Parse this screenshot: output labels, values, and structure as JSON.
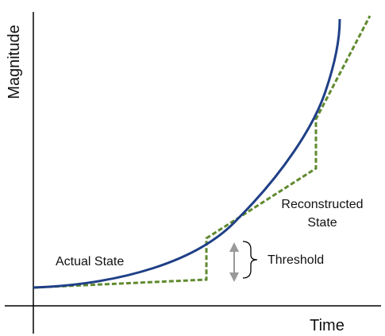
{
  "axes": {
    "y_label": "Magnitude",
    "x_label": "Time"
  },
  "labels": {
    "actual_state": "Actual State",
    "reconstructed_state_line1": "Reconstructed",
    "reconstructed_state_line2": "State",
    "threshold": "Threshold"
  },
  "colors": {
    "actual_curve": "#1f3f87",
    "reconstructed_line": "#5f8a2e",
    "threshold_arrow": "#999999",
    "axis": "#000000"
  }
}
